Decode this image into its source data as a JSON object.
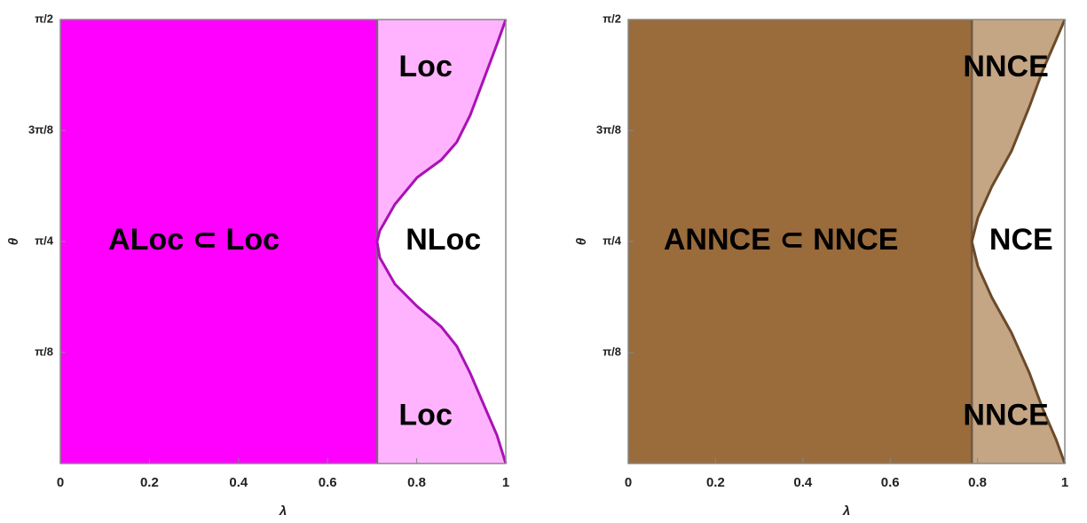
{
  "chart_data": [
    {
      "type": "region",
      "xlabel": "λ",
      "ylabel": "θ",
      "xlim": [
        0,
        1
      ],
      "xticks": [
        0,
        0.2,
        0.4,
        0.6,
        0.8,
        1
      ],
      "ylim": [
        0,
        1.5708
      ],
      "yticks": [
        {
          "value": 0.3927,
          "label": "π/8"
        },
        {
          "value": 0.7854,
          "label": "π/4"
        },
        {
          "value": 1.1781,
          "label": "3π/8"
        },
        {
          "value": 1.5708,
          "label": "π/2"
        }
      ],
      "inner_boundary": 0.711,
      "boundary": {
        "x": [
          1,
          0.98,
          0.95,
          0.92,
          0.89,
          0.855,
          0.801,
          0.751,
          0.717,
          0.711,
          0.717,
          0.751,
          0.801,
          0.855,
          0.89,
          0.92,
          0.95,
          0.98,
          1
        ],
        "y": [
          1.571,
          1.483,
          1.357,
          1.232,
          1.137,
          1.074,
          1.012,
          0.917,
          0.823,
          0.785,
          0.729,
          0.635,
          0.556,
          0.484,
          0.415,
          0.32,
          0.21,
          0.101,
          0
        ]
      },
      "colors": {
        "inner": "#ff00ff",
        "outer": "#ffb3ff",
        "line": "#a812b4",
        "edge": "#8c5a8c"
      },
      "annotations": [
        "ALoc ⊂ Loc",
        "Loc",
        "NLoc",
        "Loc"
      ]
    },
    {
      "type": "region",
      "xlabel": "λ",
      "ylabel": "θ",
      "xlim": [
        0,
        1
      ],
      "xticks": [
        0,
        0.2,
        0.4,
        0.6,
        0.8,
        1
      ],
      "ylim": [
        0,
        1.5708
      ],
      "yticks": [
        {
          "value": 0.3927,
          "label": "π/8"
        },
        {
          "value": 0.7854,
          "label": "π/4"
        },
        {
          "value": 1.1781,
          "label": "3π/8"
        },
        {
          "value": 1.5708,
          "label": "π/2"
        }
      ],
      "inner_boundary": 0.787,
      "boundary": {
        "x": [
          1,
          0.98,
          0.949,
          0.919,
          0.878,
          0.833,
          0.801,
          0.787,
          0.801,
          0.833,
          0.878,
          0.919,
          0.949,
          0.98,
          1
        ],
        "y": [
          1.571,
          1.499,
          1.389,
          1.263,
          1.106,
          0.98,
          0.87,
          0.785,
          0.697,
          0.587,
          0.462,
          0.32,
          0.195,
          0.085,
          0
        ]
      },
      "colors": {
        "inner": "#9a6b3b",
        "outer": "#c4a584",
        "line": "#6b4a2a",
        "edge": "#6b5a48"
      },
      "annotations": [
        "ANNCE ⊂ NNCE",
        "NNCE",
        "NCE",
        "NNCE"
      ]
    }
  ]
}
